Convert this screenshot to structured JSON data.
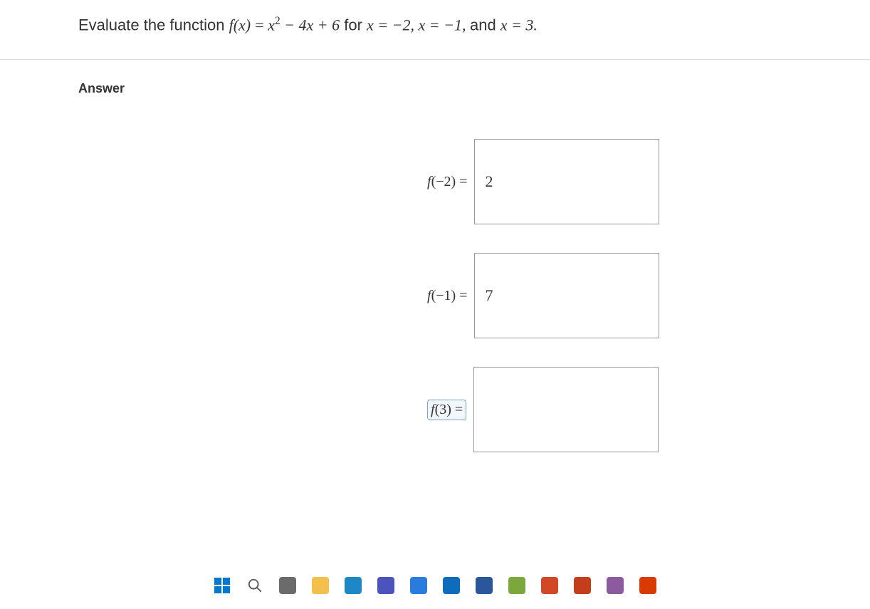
{
  "question": {
    "prefix": "Evaluate the function ",
    "func_lhs": "f(x)",
    "equals": " = ",
    "expr_term1": "x",
    "expr_exp": "2",
    "expr_rest": " − 4x + 6",
    "for_text": " for ",
    "cond1": "x = −2, ",
    "cond2": "x = −1, ",
    "and_text": "and ",
    "cond3": "x = 3."
  },
  "answer": {
    "heading": "Answer",
    "rows": [
      {
        "label_func": "f",
        "label_arg": "(−2)",
        "label_eq": " = ",
        "value": "2",
        "active": false
      },
      {
        "label_func": "f",
        "label_arg": "(−1)",
        "label_eq": " = ",
        "value": "7",
        "active": false
      },
      {
        "label_func": "f",
        "label_arg": "(3)",
        "label_eq": " = ",
        "value": "",
        "active": true
      }
    ]
  },
  "taskbar": {
    "icons": [
      {
        "name": "windows-start-icon",
        "type": "windows",
        "color": "#0078d4"
      },
      {
        "name": "search-icon",
        "type": "search",
        "color": "#555555"
      },
      {
        "name": "task-view-icon",
        "type": "app",
        "color": "#6b6b6b"
      },
      {
        "name": "file-explorer-icon",
        "type": "app",
        "color": "#f3c14b"
      },
      {
        "name": "edge-icon",
        "type": "app",
        "color": "#1e88c7"
      },
      {
        "name": "teams-icon",
        "type": "app",
        "color": "#4b53bc"
      },
      {
        "name": "store-icon",
        "type": "app",
        "color": "#2a7bde"
      },
      {
        "name": "outlook-icon",
        "type": "app",
        "color": "#0f6cbd"
      },
      {
        "name": "word-icon",
        "type": "app",
        "color": "#2b579a"
      },
      {
        "name": "app-icon-1",
        "type": "app",
        "color": "#7ba83d"
      },
      {
        "name": "app-icon-2",
        "type": "app",
        "color": "#d24726"
      },
      {
        "name": "app-icon-3",
        "type": "app",
        "color": "#c43e1c"
      },
      {
        "name": "app-icon-4",
        "type": "app",
        "color": "#8b5a9f"
      },
      {
        "name": "app-icon-5",
        "type": "app",
        "color": "#d83b01"
      }
    ]
  }
}
